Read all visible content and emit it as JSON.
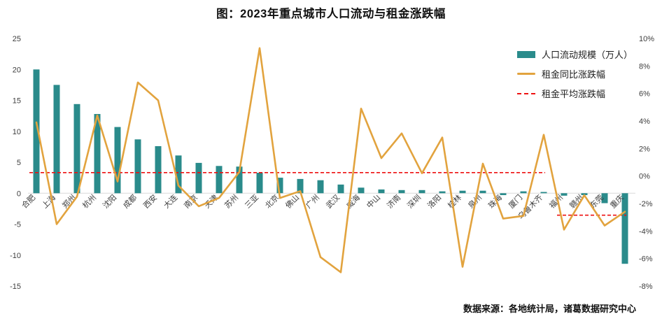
{
  "source": "数据来源：各地统计局，诸葛数据研究中心",
  "chart_data": {
    "type": "bar+line",
    "title": "图：2023年重点城市人口流动与租金涨跌幅",
    "categories": [
      "合肥",
      "上海",
      "郑州",
      "杭州",
      "沈阳",
      "成都",
      "西安",
      "大连",
      "南京",
      "天津",
      "苏州",
      "三亚",
      "北京",
      "佛山",
      "广州",
      "武汉",
      "威海",
      "中山",
      "济南",
      "深圳",
      "洛阳",
      "桂林",
      "泉州",
      "珠海",
      "厦门",
      "乌鲁木齐",
      "福州",
      "赣州",
      "东莞",
      "重庆"
    ],
    "series": [
      {
        "name": "人口流动规模（万人）",
        "type": "bar",
        "axis": "left",
        "values": [
          20,
          17.5,
          14.4,
          12.8,
          10.7,
          8.7,
          7.6,
          6.1,
          4.9,
          4.4,
          4.3,
          3.3,
          2.5,
          2.3,
          2.1,
          1.4,
          0.9,
          0.6,
          0.5,
          0.5,
          0.3,
          0.4,
          0.4,
          -0.3,
          0.3,
          0.2,
          -0.4,
          -0.3,
          -1.6,
          -11.4
        ]
      },
      {
        "name": "租金同比涨跌幅",
        "type": "line",
        "axis": "right",
        "unit": "%",
        "values": [
          3.9,
          -3.5,
          -1.5,
          4.4,
          -0.4,
          6.8,
          5.5,
          -0.7,
          -2.2,
          -1.6,
          0.3,
          9.3,
          -1.6,
          -1.1,
          -5.9,
          -7.0,
          4.9,
          1.3,
          3.1,
          0.2,
          2.8,
          -6.6,
          0.9,
          -3.1,
          -2.9,
          3.0,
          -3.9,
          -1.4,
          -3.6,
          -2.6
        ]
      },
      {
        "name": "租金平均涨跌幅",
        "type": "dashed-line",
        "axis": "right",
        "unit": "%",
        "segments": [
          {
            "from": 0,
            "to": 25,
            "value": 0.25
          },
          {
            "from": 26,
            "to": 29,
            "value": -2.85
          }
        ]
      }
    ],
    "left_axis": {
      "range": [
        -15,
        25
      ],
      "ticks": [
        25,
        20,
        15,
        10,
        5,
        0,
        -5,
        -10,
        -15
      ]
    },
    "right_axis": {
      "range": [
        -8,
        10
      ],
      "ticks": [
        "10%",
        "8%",
        "6%",
        "4%",
        "2%",
        "0%",
        "-2%",
        "-4%",
        "-6%",
        "-8%"
      ]
    },
    "grid": "zero-line-only",
    "legend_position": "top-right",
    "colors": {
      "bar": "#2a8b8b",
      "line": "#e2a33e",
      "average": "#ee1111",
      "zero_line": "#d9d9d9",
      "axis_text": "#3d3d3d"
    }
  }
}
